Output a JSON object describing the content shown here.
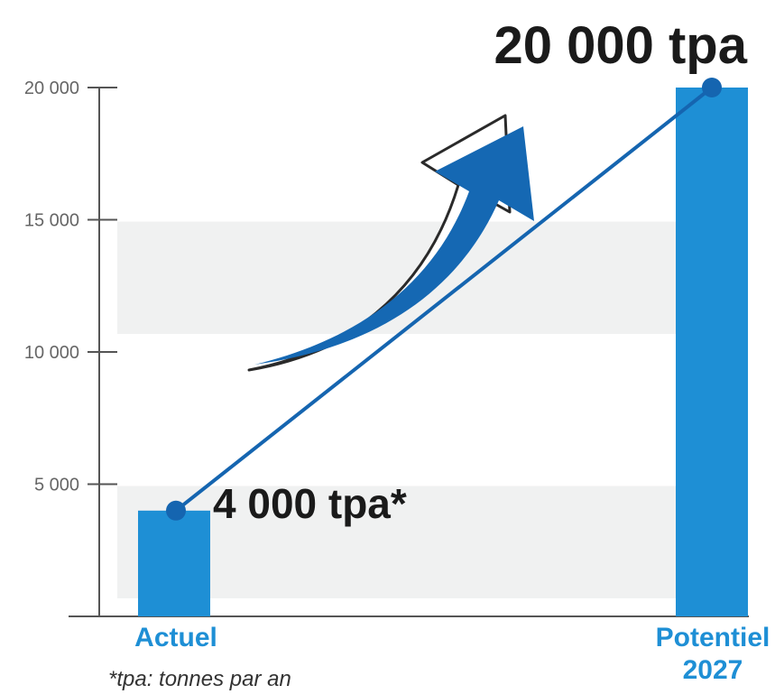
{
  "chart_data": {
    "type": "bar",
    "categories": [
      "Actuel",
      "Potentiel"
    ],
    "category_sublabels": [
      "",
      "2027"
    ],
    "values": [
      4000,
      20000
    ],
    "data_labels": [
      "4 000 tpa*",
      "20 000 tpa"
    ],
    "yticks": [
      5000,
      10000,
      15000,
      20000
    ],
    "ytick_labels": [
      "5 000",
      "10 000",
      "15 000",
      "20 000"
    ],
    "ylim": [
      0,
      20000
    ],
    "title": "",
    "xlabel": "",
    "ylabel": "",
    "footnote": "*tpa: tonnes par an",
    "colors": {
      "bar": "#1e8fd5",
      "trend_line": "#1565b0",
      "arrow": "#1568b3",
      "band": "#f0f1f1",
      "axis": "#555555",
      "category_label": "#1e8fd5"
    }
  }
}
